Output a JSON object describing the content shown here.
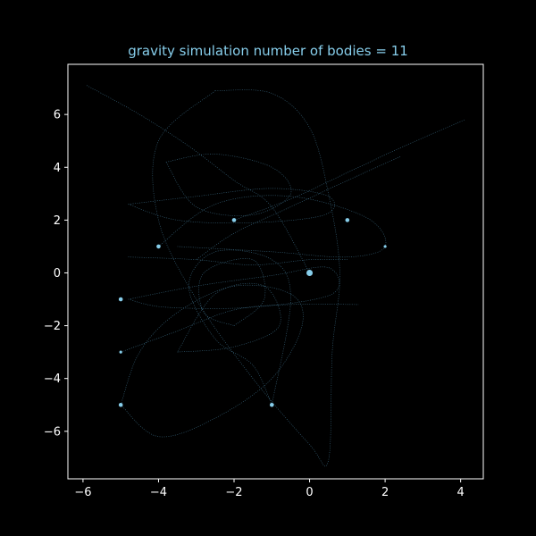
{
  "chart_data": {
    "type": "scatter",
    "title": "gravity simulation number of bodies = 11",
    "xlabel": "",
    "ylabel": "",
    "xlim": [
      -6.4,
      4.6
    ],
    "ylim": [
      -7.8,
      7.9
    ],
    "xticks": [
      -6,
      -4,
      -2,
      0,
      2,
      4
    ],
    "yticks": [
      -6,
      -4,
      -2,
      0,
      2,
      4,
      6
    ],
    "xtick_labels": [
      "−6",
      "−4",
      "−2",
      "0",
      "2",
      "4"
    ],
    "ytick_labels": [
      "−6",
      "−4",
      "−2",
      "0",
      "2",
      "4",
      "6"
    ],
    "grid": false,
    "colors": {
      "background": "#000000",
      "axes": "#ffffff",
      "bodies": "#87ceeb",
      "trails": "#4f8fb0",
      "title": "#87ceeb"
    },
    "series": [
      {
        "points": [
          {
            "x": 0,
            "y": 0,
            "size": "large"
          },
          {
            "x": -2,
            "y": 2,
            "size": "small"
          },
          {
            "x": 1,
            "y": 2,
            "size": "small"
          },
          {
            "x": -4,
            "y": 1,
            "size": "small"
          },
          {
            "x": 2,
            "y": 1,
            "size": "tiny"
          },
          {
            "x": -5,
            "y": -1,
            "size": "small"
          },
          {
            "x": -5,
            "y": -3,
            "size": "tiny"
          },
          {
            "x": -5,
            "y": -5,
            "size": "small"
          },
          {
            "x": -1,
            "y": -5,
            "size": "small"
          }
        ]
      }
    ],
    "trails": [
      [
        [
          -5.9,
          7.1
        ],
        [
          -4.5,
          6.0
        ],
        [
          -3.2,
          4.8
        ],
        [
          -2.0,
          3.5
        ],
        [
          -1.0,
          2.5
        ],
        [
          0,
          0
        ]
      ],
      [
        [
          4.1,
          5.8
        ],
        [
          2.5,
          4.8
        ],
        [
          1.0,
          3.8
        ],
        [
          -0.5,
          2.8
        ],
        [
          -2.0,
          2.0
        ]
      ],
      [
        [
          2.4,
          4.4
        ],
        [
          1.0,
          3.5
        ],
        [
          -0.5,
          2.5
        ],
        [
          -2.0,
          1.5
        ],
        [
          -3.0,
          0.5
        ]
      ],
      [
        [
          -4.8,
          2.6
        ],
        [
          -3.0,
          2.9
        ],
        [
          -1.0,
          3.2
        ],
        [
          0.5,
          2.9
        ],
        [
          0.4,
          2.2
        ],
        [
          -1.5,
          1.9
        ],
        [
          -3.5,
          2.0
        ],
        [
          -4.8,
          2.6
        ]
      ],
      [
        [
          -2.5,
          6.9
        ],
        [
          -1.0,
          6.8
        ],
        [
          0.0,
          5.5
        ],
        [
          0.5,
          3.0
        ],
        [
          0.8,
          0.0
        ],
        [
          0.6,
          -3.0
        ],
        [
          0.5,
          -7.1
        ],
        [
          0.0,
          -6.5
        ],
        [
          -1.5,
          -4.0
        ],
        [
          -3.0,
          -1.0
        ],
        [
          -4.0,
          2.0
        ],
        [
          -4.0,
          5.0
        ],
        [
          -2.5,
          6.9
        ]
      ],
      [
        [
          -4.0,
          1.0
        ],
        [
          -2.5,
          2.6
        ],
        [
          -0.5,
          2.9
        ],
        [
          1.5,
          2.1
        ],
        [
          2.0,
          1.0
        ],
        [
          1.0,
          0.6
        ],
        [
          -1.0,
          0.8
        ],
        [
          -3.5,
          1.0
        ]
      ],
      [
        [
          -4.8,
          -1.0
        ],
        [
          -3.0,
          -0.5
        ],
        [
          -1.0,
          -0.1
        ],
        [
          0.5,
          0.2
        ],
        [
          0.6,
          -0.8
        ],
        [
          -1.5,
          -1.3
        ],
        [
          -3.8,
          -1.3
        ],
        [
          -4.8,
          -1.0
        ]
      ],
      [
        [
          -5.0,
          -3.0
        ],
        [
          -3.5,
          -2.2
        ],
        [
          -2.0,
          -1.4
        ],
        [
          -0.5,
          -1.2
        ],
        [
          1.3,
          -1.2
        ]
      ],
      [
        [
          -5.0,
          -5.0
        ],
        [
          -4.5,
          -3.0
        ],
        [
          -3.5,
          -1.5
        ],
        [
          -2.0,
          -0.5
        ],
        [
          -0.5,
          -0.8
        ],
        [
          -0.2,
          -2.0
        ],
        [
          -1.0,
          -4.0
        ],
        [
          -2.5,
          -5.5
        ],
        [
          -4.0,
          -6.2
        ],
        [
          -5.0,
          -5.0
        ]
      ],
      [
        [
          -1.0,
          -5.0
        ],
        [
          -1.5,
          -3.5
        ],
        [
          -2.5,
          -2.5
        ],
        [
          -3.2,
          -0.5
        ],
        [
          -2.5,
          0.8
        ],
        [
          -1.0,
          0.5
        ],
        [
          -0.5,
          -1.0
        ],
        [
          -1.0,
          -5.0
        ]
      ],
      [
        [
          -3.8,
          4.2
        ],
        [
          -2.5,
          4.5
        ],
        [
          -1.0,
          4.0
        ],
        [
          -0.5,
          3.0
        ],
        [
          -1.5,
          2.2
        ],
        [
          -3.0,
          2.5
        ],
        [
          -3.8,
          4.2
        ]
      ],
      [
        [
          -4.8,
          0.6
        ],
        [
          -3.0,
          0.5
        ],
        [
          -1.5,
          0.3
        ],
        [
          0.0,
          0.5
        ],
        [
          1.0,
          0.5
        ]
      ],
      [
        [
          -2.0,
          -2.0
        ],
        [
          -1.2,
          -1.0
        ],
        [
          -1.5,
          0.5
        ],
        [
          -2.8,
          0.0
        ],
        [
          -2.8,
          -1.5
        ],
        [
          -2.0,
          -2.0
        ]
      ],
      [
        [
          -3.5,
          -3.0
        ],
        [
          -2.0,
          -2.8
        ],
        [
          -0.8,
          -2.0
        ],
        [
          -1.2,
          -0.5
        ],
        [
          -2.5,
          -0.8
        ],
        [
          -3.5,
          -3.0
        ]
      ]
    ]
  }
}
